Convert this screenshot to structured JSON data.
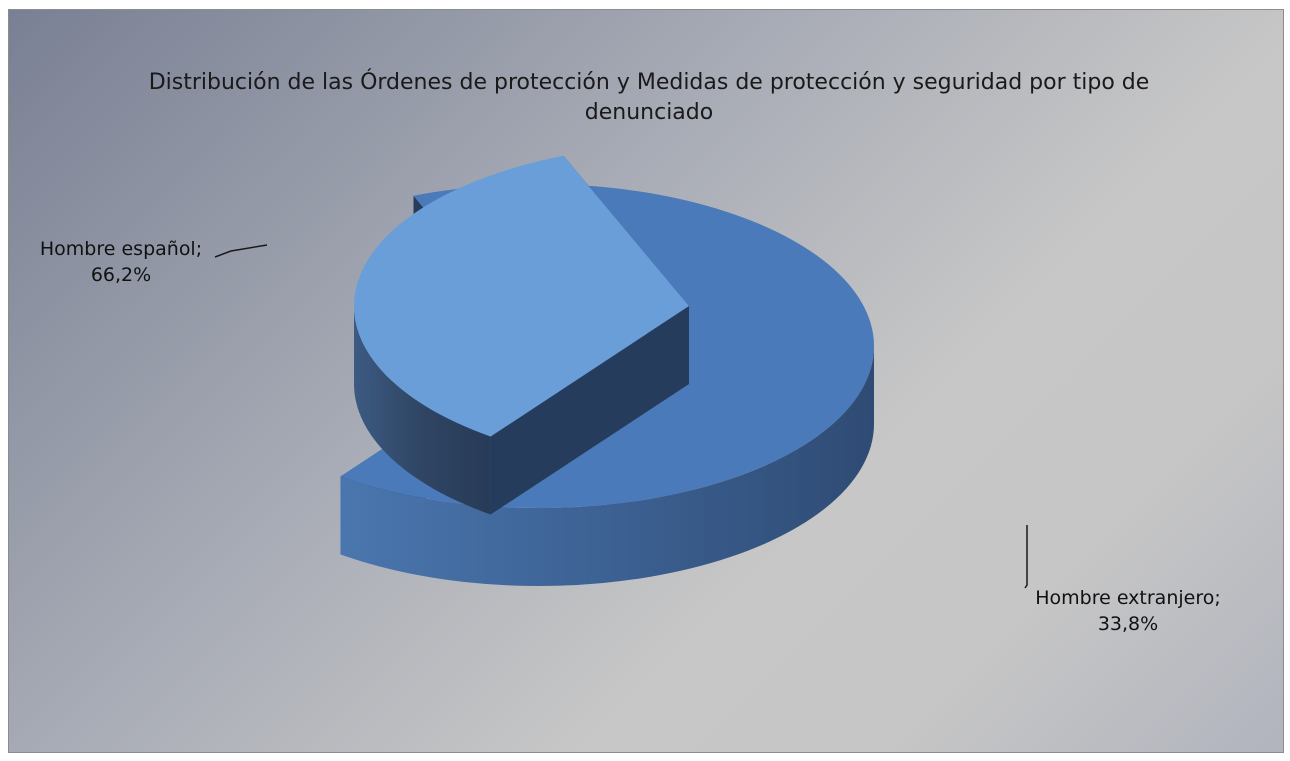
{
  "chart_data": {
    "type": "pie",
    "title": "Distribución de las Órdenes de  protección y Medidas de protección y seguridad por tipo de denunciado",
    "slices": [
      {
        "name": "Hombre español",
        "value": 66.2,
        "label": "Hombre español;",
        "value_label": "66,2%",
        "color": "#4a7ab9"
      },
      {
        "name": "Hombre extranjero",
        "value": 33.8,
        "label": "Hombre extranjero;",
        "value_label": "33,8%",
        "color": "#6a9ed9"
      }
    ],
    "exploded_slice": "Hombre extranjero",
    "style": "3d"
  }
}
